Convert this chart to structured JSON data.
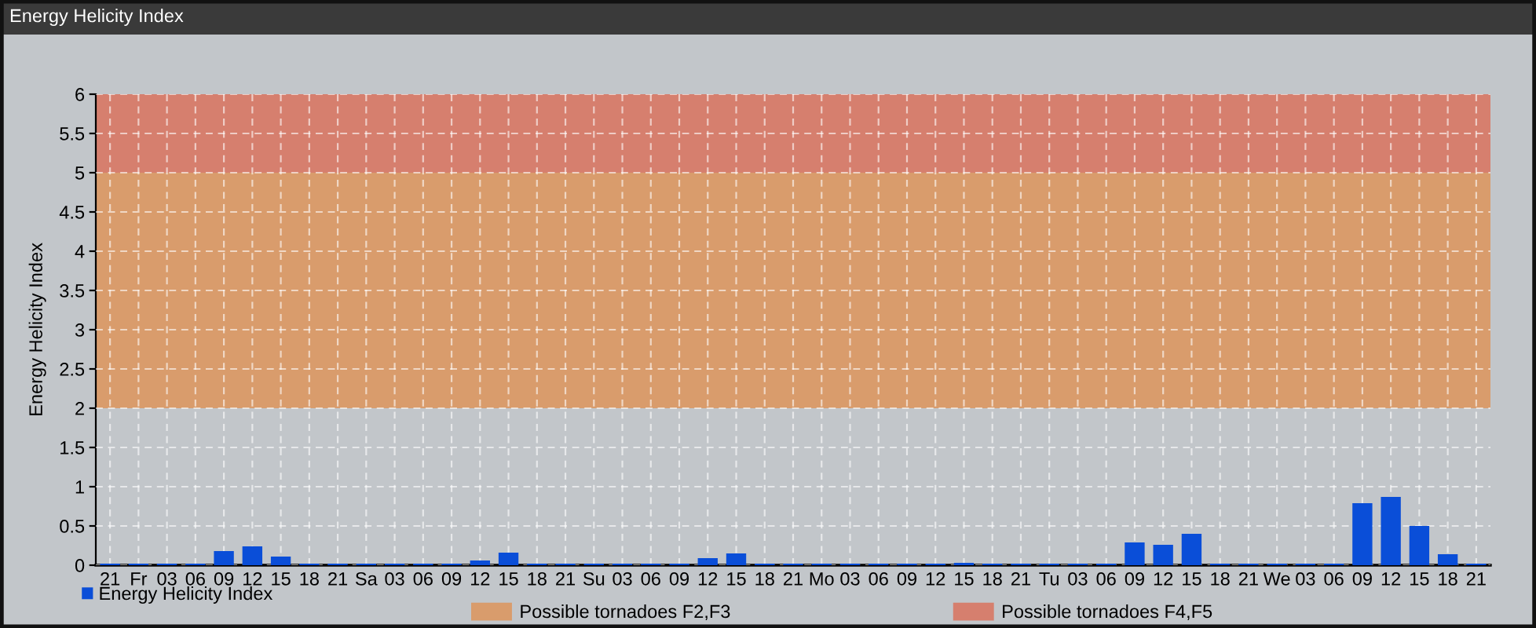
{
  "chart_data": {
    "type": "bar",
    "title": "Energy Helicity Index",
    "ylabel": "Energy Helicity Index",
    "categories": [
      "21",
      "Fr",
      "03",
      "06",
      "09",
      "12",
      "15",
      "18",
      "21",
      "Sa",
      "03",
      "06",
      "09",
      "12",
      "15",
      "18",
      "21",
      "Su",
      "03",
      "06",
      "09",
      "12",
      "15",
      "18",
      "21",
      "Mo",
      "03",
      "06",
      "09",
      "12",
      "15",
      "18",
      "21",
      "Tu",
      "03",
      "06",
      "09",
      "12",
      "15",
      "18",
      "21",
      "We",
      "03",
      "06",
      "09",
      "12",
      "15",
      "18",
      "21"
    ],
    "series": [
      {
        "name": "Energy Helicity Index",
        "color": "#0a4ed8",
        "values": [
          0.02,
          0.02,
          0.02,
          0.02,
          0.18,
          0.24,
          0.11,
          0.02,
          0.02,
          0.02,
          0.02,
          0.02,
          0.02,
          0.06,
          0.16,
          0.02,
          0.02,
          0.02,
          0.02,
          0.02,
          0.02,
          0.09,
          0.15,
          0.02,
          0.02,
          0.02,
          0.02,
          0.02,
          0.02,
          0.02,
          0.03,
          0.02,
          0.02,
          0.02,
          0.02,
          0.02,
          0.29,
          0.26,
          0.4,
          0.02,
          0.02,
          0.02,
          0.02,
          0.02,
          0.79,
          0.87,
          0.5,
          0.14,
          0.02
        ]
      }
    ],
    "ylim": [
      0,
      6
    ],
    "yticks": [
      0,
      0.5,
      1,
      1.5,
      2,
      2.5,
      3,
      3.5,
      4,
      4.5,
      5,
      5.5,
      6
    ],
    "grid": true,
    "legend": "bottom left",
    "bands": [
      {
        "axis": "y",
        "from": 2,
        "to": 5,
        "label": "Possible tornadoes F2,F3",
        "color": "#d99c6c"
      },
      {
        "axis": "y",
        "from": 5,
        "to": 6,
        "label": "Possible tornadoes F4,F5",
        "color": "#d67f6e"
      }
    ]
  }
}
